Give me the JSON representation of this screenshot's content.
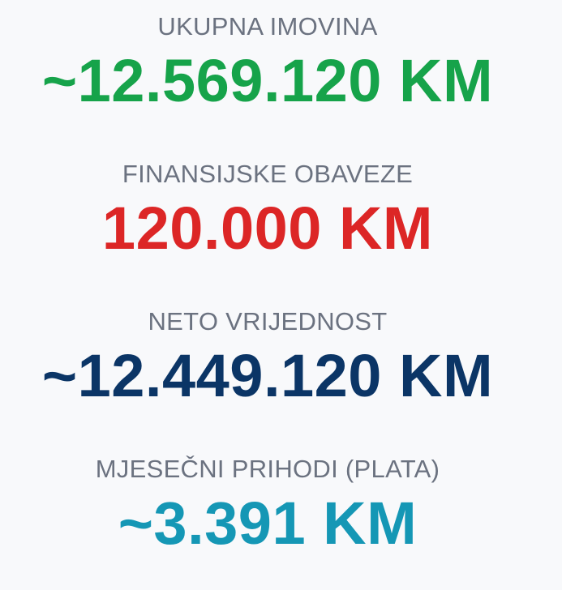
{
  "metrics": [
    {
      "label": "UKUPNA IMOVINA",
      "value": "~12.569.120 KM",
      "color": "#16a34a"
    },
    {
      "label": "FINANSIJSKE OBAVEZE",
      "value": "120.000 KM",
      "color": "#dc2626"
    },
    {
      "label": "NETO VRIJEDNOST",
      "value": "~12.449.120 KM",
      "color": "#0b3566"
    },
    {
      "label": "MJESEČNI PRIHODI (PLATA)",
      "value": "~3.391 KM",
      "color": "#1597b5"
    }
  ]
}
